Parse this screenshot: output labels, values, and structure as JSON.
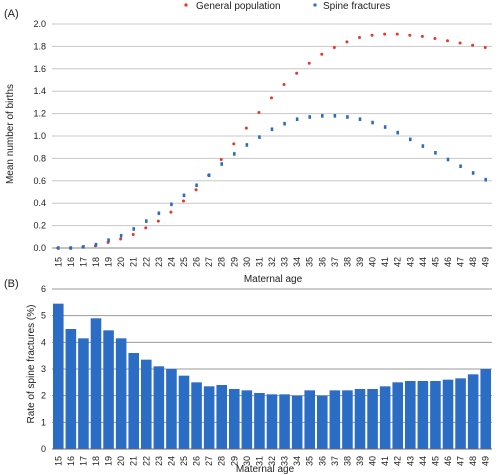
{
  "panel_a": {
    "tag": "(A)"
  },
  "panel_b": {
    "tag": "(B)"
  },
  "chart_data": [
    {
      "type": "scatter",
      "title": "",
      "xlabel": "Maternal age",
      "ylabel": "Mean number of births",
      "ylim": [
        0,
        2.0
      ],
      "yticks": [
        "0.0",
        "0.2",
        "0.4",
        "0.6",
        "0.8",
        "1.0",
        "1.2",
        "1.4",
        "1.6",
        "1.8",
        "2.0"
      ],
      "grid": "horizontal",
      "legend": "top",
      "categories": [
        "15",
        "16",
        "17",
        "18",
        "19",
        "20",
        "21",
        "22",
        "23",
        "24",
        "25",
        "26",
        "27",
        "28",
        "29",
        "30",
        "31",
        "32",
        "33",
        "34",
        "35",
        "36",
        "37",
        "38",
        "39",
        "40",
        "41",
        "42",
        "43",
        "44",
        "45",
        "46",
        "47",
        "48",
        "49"
      ],
      "series": [
        {
          "name": "General population",
          "color": "#e8362a",
          "values": [
            0.0,
            0.0,
            0.01,
            0.02,
            0.05,
            0.08,
            0.12,
            0.18,
            0.24,
            0.32,
            0.42,
            0.52,
            0.65,
            0.79,
            0.93,
            1.07,
            1.21,
            1.34,
            1.46,
            1.56,
            1.65,
            1.73,
            1.79,
            1.84,
            1.88,
            1.9,
            1.91,
            1.91,
            1.9,
            1.89,
            1.87,
            1.85,
            1.83,
            1.81,
            1.79
          ]
        },
        {
          "name": "Spine fractures",
          "color": "#2b6cc4",
          "values": [
            0.0,
            0.0,
            0.01,
            0.03,
            0.07,
            0.11,
            0.17,
            0.24,
            0.31,
            0.39,
            0.47,
            0.56,
            0.65,
            0.75,
            0.84,
            0.92,
            0.99,
            1.06,
            1.11,
            1.15,
            1.17,
            1.18,
            1.18,
            1.17,
            1.15,
            1.12,
            1.08,
            1.03,
            0.97,
            0.91,
            0.85,
            0.79,
            0.73,
            0.67,
            0.61
          ]
        }
      ]
    },
    {
      "type": "bar",
      "title": "",
      "xlabel": "Maternal age",
      "ylabel": "Rate of spine fractures (%)",
      "ylim": [
        0,
        6
      ],
      "yticks": [
        "0",
        "1",
        "2",
        "3",
        "4",
        "5",
        "6"
      ],
      "grid": "horizontal",
      "color": "#2b6cc4",
      "categories": [
        "15",
        "16",
        "17",
        "18",
        "19",
        "20",
        "21",
        "22",
        "23",
        "24",
        "25",
        "26",
        "27",
        "28",
        "29",
        "30",
        "31",
        "32",
        "33",
        "34",
        "35",
        "36",
        "37",
        "38",
        "39",
        "40",
        "41",
        "42",
        "43",
        "44",
        "45",
        "46",
        "47",
        "48",
        "49"
      ],
      "values": [
        5.45,
        4.5,
        4.15,
        4.9,
        4.45,
        4.15,
        3.6,
        3.35,
        3.1,
        3.0,
        2.75,
        2.5,
        2.35,
        2.4,
        2.25,
        2.2,
        2.1,
        2.05,
        2.05,
        2.0,
        2.2,
        2.0,
        2.2,
        2.2,
        2.25,
        2.25,
        2.35,
        2.5,
        2.55,
        2.55,
        2.55,
        2.6,
        2.65,
        2.8,
        3.0
      ]
    }
  ]
}
